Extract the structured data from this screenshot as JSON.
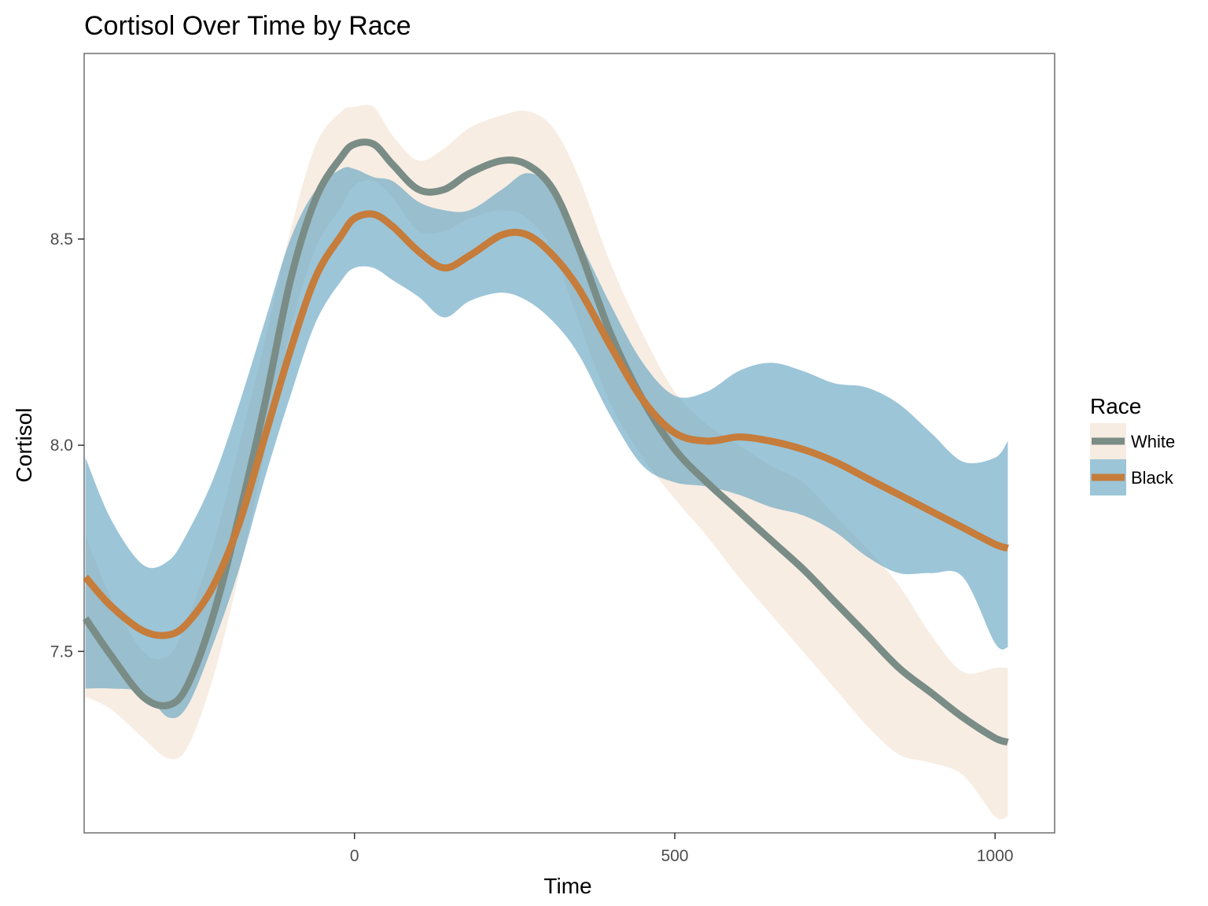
{
  "chart_data": {
    "type": "line",
    "title": "Cortisol Over Time by Race",
    "xlabel": "Time",
    "ylabel": "Cortisol",
    "xlim": [
      -422,
      1093
    ],
    "ylim": [
      7.06,
      8.95
    ],
    "x_ticks": [
      0,
      500,
      1000
    ],
    "x_tick_labels": [
      "0",
      "500",
      "1000"
    ],
    "y_ticks": [
      7.5,
      8.0,
      8.5
    ],
    "y_tick_labels": [
      "7.5",
      "8.0",
      "8.5"
    ],
    "grid": false,
    "legend": {
      "title": "Race",
      "position": "right"
    },
    "series": [
      {
        "name": "White",
        "line_color": "#7a8c86",
        "band_color": "#f0dcc8",
        "x": [
          -420,
          -380,
          -330,
          -290,
          -260,
          -220,
          -180,
          -140,
          -100,
          -60,
          -20,
          0,
          30,
          60,
          100,
          140,
          180,
          230,
          270,
          310,
          350,
          400,
          450,
          500,
          550,
          600,
          650,
          700,
          750,
          800,
          850,
          900,
          950,
          1000,
          1020
        ],
        "y": [
          7.58,
          7.49,
          7.39,
          7.37,
          7.42,
          7.59,
          7.83,
          8.1,
          8.4,
          8.6,
          8.7,
          8.73,
          8.73,
          8.68,
          8.62,
          8.62,
          8.66,
          8.69,
          8.68,
          8.62,
          8.48,
          8.27,
          8.11,
          7.99,
          7.91,
          7.84,
          7.77,
          7.7,
          7.62,
          7.54,
          7.46,
          7.4,
          7.34,
          7.29,
          7.28
        ],
        "lower": [
          7.39,
          7.36,
          7.29,
          7.24,
          7.27,
          7.44,
          7.69,
          7.98,
          8.28,
          8.48,
          8.58,
          8.63,
          8.64,
          8.6,
          8.52,
          8.52,
          8.55,
          8.57,
          8.55,
          8.47,
          8.3,
          8.1,
          7.97,
          7.87,
          7.78,
          7.68,
          7.59,
          7.5,
          7.41,
          7.32,
          7.25,
          7.23,
          7.2,
          7.1,
          7.1
        ],
        "upper": [
          7.78,
          7.63,
          7.5,
          7.49,
          7.58,
          7.76,
          8.0,
          8.25,
          8.52,
          8.73,
          8.81,
          8.82,
          8.82,
          8.75,
          8.69,
          8.72,
          8.77,
          8.8,
          8.81,
          8.77,
          8.65,
          8.44,
          8.27,
          8.13,
          8.05,
          8.0,
          7.95,
          7.91,
          7.83,
          7.75,
          7.66,
          7.54,
          7.45,
          7.46,
          7.46
        ]
      },
      {
        "name": "Black",
        "line_color": "#c67c3a",
        "band_color": "#5a9ebe",
        "x": [
          -420,
          -380,
          -330,
          -290,
          -260,
          -220,
          -180,
          -140,
          -100,
          -60,
          -20,
          0,
          30,
          60,
          100,
          140,
          180,
          230,
          270,
          310,
          350,
          400,
          450,
          500,
          550,
          600,
          650,
          700,
          750,
          800,
          850,
          900,
          950,
          1000,
          1020
        ],
        "y": [
          7.68,
          7.61,
          7.55,
          7.54,
          7.57,
          7.66,
          7.81,
          8.02,
          8.23,
          8.41,
          8.51,
          8.55,
          8.56,
          8.53,
          8.47,
          8.43,
          8.46,
          8.51,
          8.51,
          8.46,
          8.38,
          8.24,
          8.11,
          8.03,
          8.01,
          8.02,
          8.01,
          7.99,
          7.96,
          7.92,
          7.88,
          7.84,
          7.8,
          7.76,
          7.75
        ],
        "lower": [
          7.41,
          7.41,
          7.4,
          7.34,
          7.37,
          7.52,
          7.7,
          7.92,
          8.12,
          8.3,
          8.4,
          8.43,
          8.43,
          8.4,
          8.36,
          8.31,
          8.35,
          8.37,
          8.35,
          8.3,
          8.22,
          8.07,
          7.95,
          7.91,
          7.9,
          7.88,
          7.85,
          7.83,
          7.79,
          7.73,
          7.69,
          7.69,
          7.68,
          7.52,
          7.51
        ],
        "upper": [
          7.97,
          7.82,
          7.71,
          7.72,
          7.79,
          7.92,
          8.1,
          8.3,
          8.5,
          8.62,
          8.67,
          8.67,
          8.65,
          8.64,
          8.59,
          8.57,
          8.57,
          8.62,
          8.66,
          8.62,
          8.5,
          8.34,
          8.2,
          8.12,
          8.13,
          8.18,
          8.2,
          8.18,
          8.15,
          8.14,
          8.1,
          8.03,
          7.96,
          7.97,
          8.01
        ]
      }
    ]
  }
}
